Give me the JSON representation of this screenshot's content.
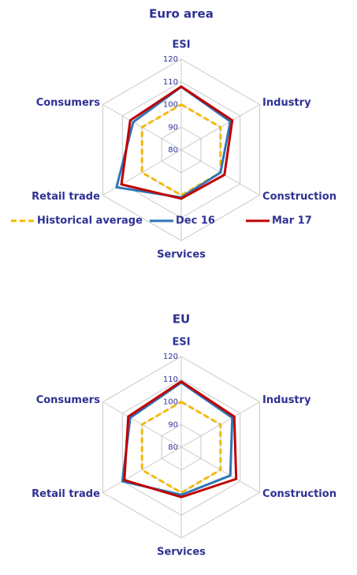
{
  "chart_data": [
    {
      "type": "radar",
      "title": "Euro area",
      "categories": [
        "ESI",
        "Industry",
        "Construction",
        "Services",
        "Retail trade",
        "Consumers"
      ],
      "rlim": [
        80,
        120
      ],
      "rticks": [
        80,
        90,
        100,
        110,
        120
      ],
      "series": [
        {
          "name": "Historical average",
          "color": "#f5b800",
          "dashed": true,
          "values": [
            100,
            100,
            100,
            100,
            100,
            100
          ]
        },
        {
          "name": "Dec 16",
          "color": "#2e75b6",
          "values": [
            107.8,
            105,
            100,
            101,
            113,
            104.5
          ]
        },
        {
          "name": "Mar 17",
          "color": "#c00000",
          "values": [
            107.9,
            106,
            102,
            101.5,
            110.5,
            106
          ]
        }
      ]
    },
    {
      "type": "radar",
      "title": "EU",
      "categories": [
        "ESI",
        "Industry",
        "Construction",
        "Services",
        "Retail trade",
        "Consumers"
      ],
      "rlim": [
        80,
        120
      ],
      "rticks": [
        80,
        90,
        100,
        110,
        120
      ],
      "series": [
        {
          "name": "Historical average",
          "color": "#f5b800",
          "dashed": true,
          "values": [
            100,
            100,
            100,
            100,
            100,
            100
          ]
        },
        {
          "name": "Dec 16",
          "color": "#2e75b6",
          "values": [
            108.5,
            106,
            105,
            101,
            110,
            106
          ]
        },
        {
          "name": "Mar 17",
          "color": "#c00000",
          "values": [
            109,
            107,
            108,
            102,
            109,
            107
          ]
        }
      ]
    }
  ]
}
